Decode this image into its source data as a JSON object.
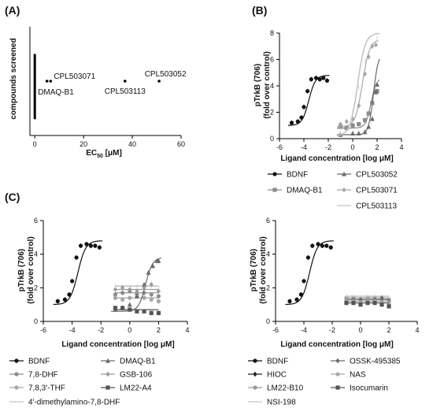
{
  "chart_data": [
    {
      "panel": "(A)",
      "type": "scatter",
      "xlabel_main": "EC",
      "xlabel_sub": "50",
      "xlabel_unit": " [μM]",
      "ylabel": "compounds screened",
      "xlim": [
        -2,
        60
      ],
      "xticks": [
        "0",
        "20",
        "40",
        "60"
      ],
      "xtick_values": [
        0,
        20,
        40,
        60
      ],
      "points": [
        {
          "label": "DMAQ-B1",
          "x": 5,
          "y": 0.5
        },
        {
          "label": "CPL503071",
          "x": 6.5,
          "y": 0.5
        },
        {
          "label": "CPL503113",
          "x": 37,
          "y": 0.5
        },
        {
          "label": "CPL503052",
          "x": 51,
          "y": 0.5
        }
      ],
      "bar": {
        "x": 0,
        "y_from": 0.15,
        "y_to": 0.75
      }
    },
    {
      "panel": "(B)",
      "type": "scatter",
      "xlabel": "Ligand concentration [log μM]",
      "ylabel_l1": "pTrkB (706)",
      "ylabel_l2": "(fold over control)",
      "xlim": [
        -6,
        4
      ],
      "ylim": [
        0,
        8
      ],
      "xticks": [
        "-6",
        "-4",
        "-2",
        "0",
        "2",
        "4"
      ],
      "yticks": [
        "0",
        "2",
        "4",
        "6",
        "8"
      ],
      "series": [
        {
          "name": "BDNF",
          "color": "#111111",
          "marker": "circle",
          "ec50": -3.6,
          "bottom": 1.0,
          "top": 4.8,
          "hill": 1.6,
          "x": [
            -5,
            -4.5,
            -4.2,
            -4,
            -3.7,
            -3.4,
            -3,
            -2.7,
            -2.4,
            -2.1
          ],
          "y": [
            1.2,
            1.3,
            1.6,
            2.4,
            3.6,
            4.5,
            4.6,
            4.5,
            4.6,
            4.4
          ]
        },
        {
          "name": "DMAQ-B1",
          "color": "#8c8c8c",
          "marker": "square",
          "ec50": 1.5,
          "bottom": 0.8,
          "top": 4.6,
          "hill": 2.0,
          "x": [
            -1,
            -0.5,
            0,
            0.5,
            1,
            1.3,
            1.6,
            1.9,
            2
          ],
          "y": [
            0.9,
            0.8,
            1.0,
            1.1,
            1.4,
            1.9,
            2.7,
            3.5,
            3.6
          ]
        },
        {
          "name": "CPL503052",
          "color": "#6a6a6a",
          "marker": "triangle",
          "ec50": 1.7,
          "bottom": 0.3,
          "top": 6.5,
          "hill": 2.2,
          "x": [
            -1,
            0,
            0.5,
            1,
            1.3,
            1.6,
            1.9,
            2
          ],
          "y": [
            0.3,
            0.4,
            0.4,
            0.5,
            0.9,
            1.5,
            3.6,
            4.1
          ]
        },
        {
          "name": "CPL503071",
          "color": "#a6a6a6",
          "marker": "diamond",
          "ec50": 0.8,
          "bottom": 0.9,
          "top": 7.5,
          "hill": 1.5,
          "x": [
            -1,
            -0.5,
            0,
            0.5,
            1,
            1.3,
            1.6,
            1.9
          ],
          "y": [
            1.1,
            1.3,
            1.5,
            2.5,
            4.9,
            6.2,
            7.0,
            7.1
          ]
        },
        {
          "name": "CPL503113",
          "color": "#c4c4c4",
          "marker": "none",
          "ec50": 0.4,
          "bottom": 0.2,
          "top": 8.0,
          "hill": 1.4,
          "x": [
            -1,
            0,
            0.5,
            1,
            1.5,
            2
          ],
          "y": [
            0.4,
            2.0,
            3.9,
            5.9,
            7.0,
            7.6
          ]
        }
      ]
    },
    {
      "panel": "(C)",
      "type": "scatter",
      "xlabel": "Ligand concentration [log μM]",
      "ylabel_l1": "pTrkB (706)",
      "ylabel_l2": "(fold over control)",
      "xlim": [
        -6,
        4
      ],
      "ylim": [
        0,
        6
      ],
      "xticks": [
        "-6",
        "-4",
        "-2",
        "0",
        "2",
        "4"
      ],
      "yticks": [
        "0",
        "2",
        "4",
        "6"
      ],
      "series": [
        {
          "name": "BDNF",
          "color": "#111111",
          "marker": "circle",
          "ec50": -3.6,
          "bottom": 1.0,
          "top": 4.8,
          "hill": 1.6,
          "x": [
            -5,
            -4.5,
            -4.2,
            -4,
            -3.7,
            -3.4,
            -3,
            -2.7,
            -2.4,
            -2.1
          ],
          "y": [
            1.2,
            1.3,
            1.6,
            2.4,
            3.8,
            4.5,
            4.6,
            4.5,
            4.5,
            4.4
          ]
        },
        {
          "name": "7,8-DHF",
          "color": "#8c8c8c",
          "marker": "circle",
          "flat": 1.7,
          "x": [
            -1,
            -0.5,
            0,
            0.5,
            1,
            1.5,
            2
          ],
          "y": [
            1.6,
            1.7,
            1.8,
            1.6,
            1.7,
            1.6,
            1.5
          ]
        },
        {
          "name": "7,8,3'-THF",
          "color": "#a6a6a6",
          "marker": "circle",
          "flat": 1.4,
          "x": [
            -1,
            -0.5,
            0,
            0.5,
            1,
            1.5,
            2
          ],
          "y": [
            1.4,
            1.3,
            1.4,
            1.5,
            1.4,
            1.3,
            1.2
          ]
        },
        {
          "name": "4'-dimethylamino-7,8-DHF",
          "color": "#c4c4c4",
          "marker": "none",
          "flat": 2.1,
          "x": [
            -1,
            -0.5,
            0,
            0.5,
            1,
            1.5,
            2
          ],
          "y": [
            2.1,
            2.1,
            2.0,
            2.1,
            2.2,
            2.1,
            2.0
          ]
        },
        {
          "name": "DMAQ-B1",
          "color": "#6a6a6a",
          "marker": "triangle",
          "ec50": 1.1,
          "bottom": 0.6,
          "top": 3.8,
          "hill": 1.8,
          "x": [
            -1,
            -0.5,
            0,
            0.5,
            1,
            1.3,
            1.6,
            1.9,
            2
          ],
          "y": [
            0.7,
            0.8,
            1.0,
            1.5,
            2.2,
            2.9,
            3.3,
            3.6,
            3.6
          ]
        },
        {
          "name": "GSB-106",
          "color": "#9a9a9a",
          "marker": "diamond",
          "flat": 1.9,
          "x": [
            -1,
            -0.5,
            0,
            0.5,
            1,
            1.5,
            2
          ],
          "y": [
            1.9,
            2.0,
            1.9,
            1.8,
            2.0,
            2.2,
            1.8
          ]
        },
        {
          "name": "LM22-A4",
          "color": "#555555",
          "marker": "square",
          "flat": 0.7,
          "x": [
            -1,
            -0.5,
            0,
            0.5,
            1,
            1.5,
            2
          ],
          "y": [
            0.8,
            0.8,
            0.7,
            0.6,
            0.6,
            0.5,
            0.5
          ]
        }
      ]
    },
    {
      "panel": "",
      "type": "scatter",
      "xlabel": "Ligand concentration [log μM]",
      "ylabel_l1": "pTrkB (706)",
      "ylabel_l2": "(fold over control)",
      "xlim": [
        -6,
        4
      ],
      "ylim": [
        0,
        6
      ],
      "xticks": [
        "-6",
        "-4",
        "-2",
        "0",
        "2",
        "4"
      ],
      "yticks": [
        "0",
        "2",
        "4",
        "6"
      ],
      "series": [
        {
          "name": "BDNF",
          "color": "#111111",
          "marker": "circle",
          "ec50": -3.6,
          "bottom": 1.0,
          "top": 4.8,
          "hill": 1.6,
          "x": [
            -5,
            -4.5,
            -4.2,
            -4,
            -3.7,
            -3.4,
            -3,
            -2.7,
            -2.4,
            -2.1
          ],
          "y": [
            1.2,
            1.3,
            1.6,
            2.4,
            3.8,
            4.5,
            4.6,
            4.5,
            4.5,
            4.4
          ]
        },
        {
          "name": "HIOC",
          "color": "#222222",
          "marker": "diamond",
          "flat": 1.3,
          "x": [
            -1,
            -0.5,
            0,
            0.5,
            1,
            1.5,
            2
          ],
          "y": [
            1.3,
            1.3,
            1.3,
            1.4,
            1.3,
            1.3,
            1.2
          ]
        },
        {
          "name": "LM22-B10",
          "color": "#9a9a9a",
          "marker": "circle",
          "flat": 1.4,
          "x": [
            -1,
            -0.5,
            0,
            0.5,
            1,
            1.5,
            2
          ],
          "y": [
            1.4,
            1.4,
            1.3,
            1.4,
            1.4,
            1.3,
            1.3
          ]
        },
        {
          "name": "NSI-198",
          "color": "#c4c4c4",
          "marker": "none",
          "flat": 1.5,
          "x": [
            -1,
            -0.5,
            0,
            0.5,
            1,
            1.5,
            2
          ],
          "y": [
            1.5,
            1.5,
            1.4,
            1.5,
            1.5,
            1.4,
            1.4
          ]
        },
        {
          "name": "OSSK-495385",
          "color": "#6a6a6a",
          "marker": "diamond",
          "flat": 1.3,
          "x": [
            -1,
            -0.5,
            0,
            0.5,
            1,
            1.5,
            2
          ],
          "y": [
            1.2,
            1.3,
            1.3,
            1.2,
            1.3,
            1.4,
            1.2
          ]
        },
        {
          "name": "NAS",
          "color": "#aaaaaa",
          "marker": "circle",
          "flat": 1.2,
          "x": [
            -1,
            -0.5,
            0,
            0.5,
            1,
            1.5,
            2
          ],
          "y": [
            1.2,
            1.2,
            1.1,
            1.2,
            1.2,
            1.1,
            1.1
          ]
        },
        {
          "name": "Isocumarin",
          "color": "#555555",
          "marker": "square",
          "flat": 1.1,
          "x": [
            -1,
            -0.5,
            0,
            0.5,
            1,
            1.5,
            2
          ],
          "y": [
            1.1,
            1.1,
            1.0,
            1.1,
            1.1,
            1.0,
            0.9
          ]
        }
      ]
    }
  ]
}
